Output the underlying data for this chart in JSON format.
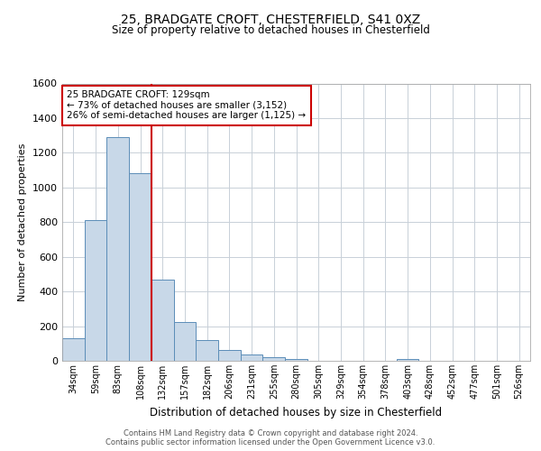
{
  "title1": "25, BRADGATE CROFT, CHESTERFIELD, S41 0XZ",
  "title2": "Size of property relative to detached houses in Chesterfield",
  "xlabel": "Distribution of detached houses by size in Chesterfield",
  "ylabel": "Number of detached properties",
  "bin_labels": [
    "34sqm",
    "59sqm",
    "83sqm",
    "108sqm",
    "132sqm",
    "157sqm",
    "182sqm",
    "206sqm",
    "231sqm",
    "255sqm",
    "280sqm",
    "305sqm",
    "329sqm",
    "354sqm",
    "378sqm",
    "403sqm",
    "428sqm",
    "452sqm",
    "477sqm",
    "501sqm",
    "526sqm"
  ],
  "bar_values": [
    130,
    810,
    1290,
    1080,
    470,
    225,
    120,
    65,
    38,
    22,
    13,
    0,
    0,
    0,
    0,
    13,
    0,
    0,
    0,
    0,
    0
  ],
  "bar_color": "#c8d8e8",
  "bar_edge_color": "#5b8db8",
  "vline_color": "#cc0000",
  "property_bin_index": 4,
  "annotation_text": "25 BRADGATE CROFT: 129sqm\n← 73% of detached houses are smaller (3,152)\n26% of semi-detached houses are larger (1,125) →",
  "annotation_box_color": "#cc0000",
  "ylim": [
    0,
    1600
  ],
  "yticks": [
    0,
    200,
    400,
    600,
    800,
    1000,
    1200,
    1400,
    1600
  ],
  "footer_text": "Contains HM Land Registry data © Crown copyright and database right 2024.\nContains public sector information licensed under the Open Government Licence v3.0.",
  "background_color": "#ffffff",
  "grid_color": "#c8d0d8"
}
